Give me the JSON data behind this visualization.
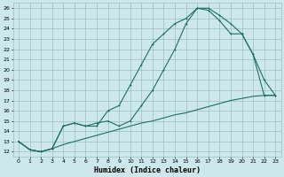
{
  "xlabel": "Humidex (Indice chaleur)",
  "bg_color": "#cce8ec",
  "grid_color": "#9bbfc4",
  "line_color": "#1e6e65",
  "xlim": [
    -0.5,
    23.5
  ],
  "ylim": [
    11.5,
    26.5
  ],
  "xticks": [
    0,
    1,
    2,
    3,
    4,
    5,
    6,
    7,
    8,
    9,
    10,
    11,
    12,
    13,
    14,
    15,
    16,
    17,
    18,
    19,
    20,
    21,
    22,
    23
  ],
  "yticks": [
    12,
    13,
    14,
    15,
    16,
    17,
    18,
    19,
    20,
    21,
    22,
    23,
    24,
    25,
    26
  ],
  "line1_x": [
    0,
    1,
    2,
    3,
    4,
    5,
    6,
    7,
    8,
    9,
    10,
    11,
    12,
    13,
    14,
    15,
    16,
    17,
    18,
    19,
    20,
    21,
    22,
    23
  ],
  "line1_y": [
    13.0,
    12.2,
    12.0,
    12.3,
    12.7,
    13.0,
    13.3,
    13.6,
    13.9,
    14.2,
    14.5,
    14.8,
    15.0,
    15.3,
    15.6,
    15.8,
    16.1,
    16.4,
    16.7,
    17.0,
    17.2,
    17.4,
    17.5,
    17.5
  ],
  "line2_x": [
    0,
    1,
    2,
    3,
    4,
    5,
    6,
    7,
    8,
    9,
    10,
    11,
    12,
    13,
    14,
    15,
    16,
    17,
    18,
    19,
    20,
    21,
    22,
    23
  ],
  "line2_y": [
    13.0,
    12.2,
    12.0,
    12.3,
    14.5,
    14.8,
    14.5,
    14.8,
    15.0,
    14.5,
    15.0,
    16.5,
    18.0,
    20.0,
    22.0,
    24.5,
    26.0,
    25.8,
    24.8,
    23.5,
    23.5,
    21.5,
    19.0,
    17.5
  ],
  "line3_x": [
    0,
    1,
    2,
    3,
    4,
    5,
    6,
    7,
    8,
    9,
    10,
    11,
    12,
    13,
    14,
    15,
    16,
    17,
    18,
    19,
    20,
    21,
    22,
    23
  ],
  "line3_y": [
    13.0,
    12.2,
    12.0,
    12.3,
    14.5,
    14.8,
    14.5,
    14.5,
    16.0,
    16.5,
    18.5,
    20.5,
    22.5,
    23.5,
    24.5,
    25.0,
    26.0,
    26.0,
    25.3,
    24.5,
    23.5,
    21.5,
    17.5,
    17.5
  ]
}
